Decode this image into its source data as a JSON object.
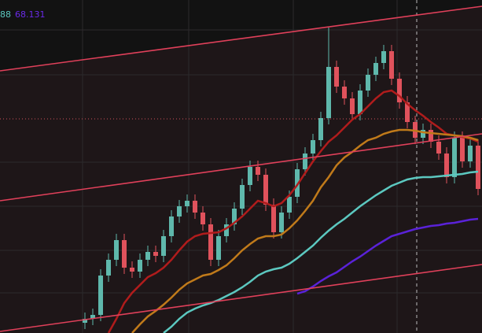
{
  "chart_data": {
    "type": "candlestick",
    "indicator_labels": [
      {
        "text": "88",
        "color": "#5cc8c0"
      },
      {
        "text": "68.131",
        "color": "#6a2ae8"
      }
    ],
    "ylim": [
      0,
      423
    ],
    "up_color": "#5fb8ac",
    "down_color": "#e0525c",
    "open": [
      13,
      18,
      23,
      73,
      93,
      118,
      83,
      78,
      93,
      103,
      98,
      123,
      148,
      161,
      168,
      153,
      138,
      93,
      123,
      138,
      158,
      188,
      211,
      201,
      163,
      128,
      153,
      173,
      208,
      228,
      245,
      273,
      338,
      313,
      298,
      278,
      308,
      328,
      343,
      358,
      323,
      293,
      268,
      248,
      258,
      243,
      228,
      198,
      248,
      218,
      238
    ],
    "high": [
      26,
      31,
      81,
      101,
      126,
      126,
      91,
      101,
      111,
      111,
      131,
      156,
      169,
      176,
      176,
      161,
      146,
      131,
      146,
      166,
      196,
      219,
      219,
      209,
      171,
      161,
      181,
      216,
      236,
      253,
      281,
      388,
      346,
      321,
      306,
      316,
      336,
      351,
      366,
      366,
      331,
      301,
      276,
      266,
      266,
      251,
      236,
      256,
      256,
      246,
      246
    ],
    "low": [
      5,
      10,
      15,
      65,
      85,
      75,
      70,
      70,
      85,
      90,
      90,
      115,
      140,
      153,
      145,
      130,
      85,
      85,
      115,
      130,
      150,
      180,
      193,
      155,
      120,
      120,
      145,
      165,
      200,
      220,
      237,
      265,
      305,
      290,
      270,
      270,
      300,
      320,
      335,
      315,
      285,
      260,
      240,
      240,
      235,
      220,
      190,
      190,
      210,
      210,
      175
    ],
    "close": [
      18,
      23,
      73,
      93,
      118,
      83,
      78,
      93,
      103,
      98,
      123,
      148,
      161,
      168,
      153,
      138,
      93,
      123,
      138,
      158,
      188,
      211,
      201,
      163,
      128,
      153,
      173,
      208,
      228,
      245,
      273,
      338,
      313,
      298,
      278,
      308,
      328,
      343,
      358,
      323,
      293,
      268,
      248,
      258,
      243,
      228,
      198,
      248,
      218,
      238,
      183
    ],
    "series": [
      {
        "color": "#b01c1c",
        "values": [
          null,
          null,
          null,
          0,
          18,
          38,
          51,
          61,
          71,
          76,
          83,
          93,
          105,
          116,
          123,
          126,
          127,
          128,
          133,
          140,
          148,
          158,
          168,
          165,
          161,
          165,
          175,
          188,
          203,
          218,
          231,
          243,
          251,
          261,
          271,
          278,
          288,
          298,
          306,
          308,
          301,
          291,
          283,
          276,
          268,
          261,
          253,
          251,
          249,
          247,
          243
        ]
      },
      {
        "color": "#c07a1a",
        "values": [
          null,
          null,
          null,
          null,
          null,
          null,
          0,
          11,
          21,
          28,
          36,
          45,
          55,
          63,
          68,
          73,
          75,
          80,
          86,
          95,
          105,
          113,
          120,
          123,
          123,
          125,
          133,
          143,
          155,
          168,
          185,
          198,
          213,
          223,
          230,
          238,
          245,
          248,
          253,
          256,
          258,
          258,
          257,
          255,
          254,
          253,
          252,
          251,
          250,
          248,
          245
        ]
      },
      {
        "color": "#5cc8c0",
        "values": [
          null,
          null,
          null,
          null,
          null,
          null,
          null,
          null,
          null,
          null,
          0,
          8,
          18,
          26,
          31,
          35,
          38,
          42,
          47,
          52,
          58,
          65,
          73,
          78,
          81,
          83,
          88,
          95,
          103,
          111,
          121,
          130,
          138,
          145,
          153,
          161,
          168,
          175,
          181,
          187,
          191,
          195,
          197,
          198,
          198,
          199,
          200,
          201,
          202,
          204,
          205
        ]
      },
      {
        "color": "#5a22d8",
        "values": [
          null,
          null,
          null,
          null,
          null,
          null,
          null,
          null,
          null,
          null,
          null,
          null,
          null,
          null,
          null,
          null,
          null,
          null,
          null,
          null,
          null,
          null,
          null,
          null,
          null,
          null,
          null,
          50,
          53,
          59,
          66,
          72,
          77,
          84,
          91,
          97,
          104,
          111,
          117,
          123,
          126,
          129,
          132,
          134,
          136,
          137,
          139,
          140,
          142,
          144,
          145
        ]
      }
    ]
  }
}
